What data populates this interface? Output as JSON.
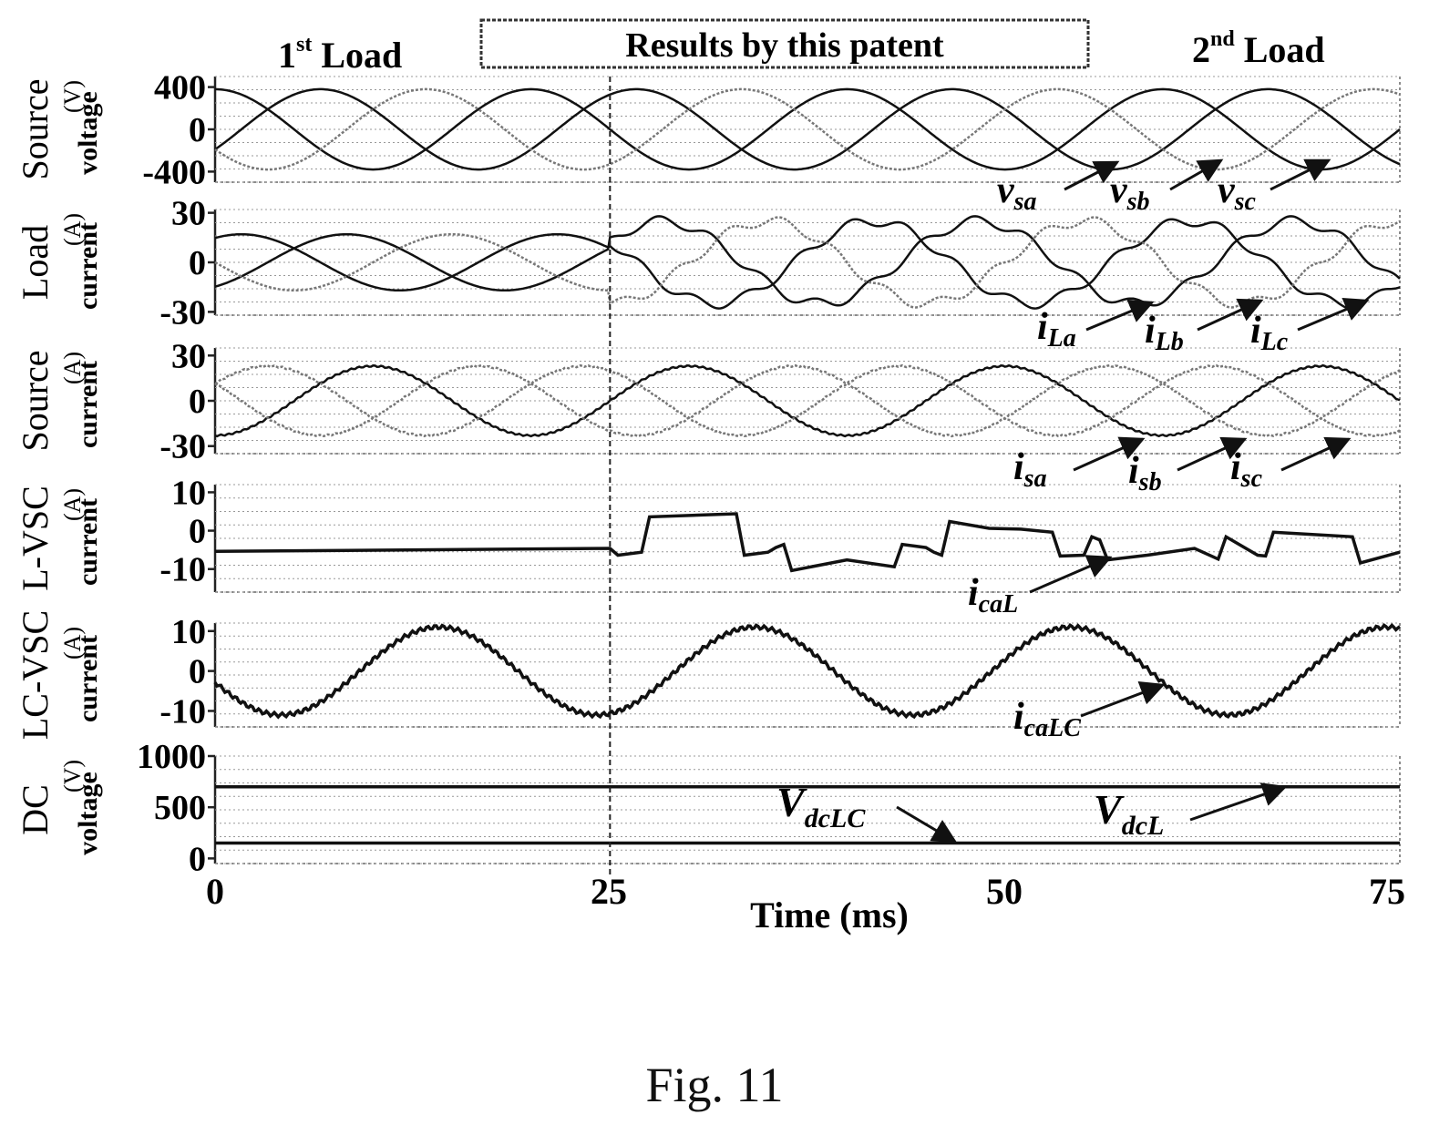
{
  "header": {
    "left_label_main": "1",
    "left_label_sup": "st",
    "left_label_rest": " Load",
    "center_label": "Results by this patent",
    "right_label_main": "2",
    "right_label_sup": "nd",
    "right_label_rest": " Load"
  },
  "caption": "Fig. 11",
  "chart_data": {
    "type": "line",
    "xlabel": "Time (ms)",
    "xlim": [
      0,
      75
    ],
    "x_ticks": [
      "0",
      "25",
      "50",
      "75"
    ],
    "event_marker_x": 25,
    "panels": [
      {
        "id": "source-voltage",
        "ylabel_line1": "Source",
        "ylabel_line2": "voltage",
        "unit": "(V)",
        "ylim": [
          -500,
          500
        ],
        "y_ticks": [
          {
            "v": 400,
            "t": "400"
          },
          {
            "v": 0,
            "t": "0"
          },
          {
            "v": -400,
            "t": "-400"
          }
        ],
        "series": [
          {
            "label": "v",
            "sub": "sa",
            "style": "dark",
            "model": {
              "type": "sine",
              "before": {
                "amp": 380,
                "phase_deg": 90
              },
              "after": {
                "amp": 380,
                "phase_deg": 90
              }
            }
          },
          {
            "label": "v",
            "sub": "sb",
            "style": "dark",
            "model": {
              "type": "sine",
              "before": {
                "amp": 380,
                "phase_deg": -30
              },
              "after": {
                "amp": 380,
                "phase_deg": -30
              }
            }
          },
          {
            "label": "v",
            "sub": "sc",
            "style": "light",
            "model": {
              "type": "sine",
              "before": {
                "amp": 380,
                "phase_deg": 210
              },
              "after": {
                "amp": 380,
                "phase_deg": 210
              }
            }
          }
        ]
      },
      {
        "id": "load-current",
        "ylabel_line1": "Load",
        "ylabel_line2": "current",
        "unit": "(A)",
        "ylim": [
          -32,
          32
        ],
        "y_ticks": [
          {
            "v": 30,
            "t": "30"
          },
          {
            "v": 0,
            "t": "0"
          },
          {
            "v": -30,
            "t": "-30"
          }
        ],
        "series": [
          {
            "label": "i",
            "sub": "La",
            "style": "dark",
            "model": {
              "type": "sine",
              "before": {
                "amp": 17,
                "phase_deg": 60
              },
              "after": {
                "amp": 25,
                "phase_deg": 60,
                "ripple": 3
              }
            }
          },
          {
            "label": "i",
            "sub": "Lb",
            "style": "dark",
            "model": {
              "type": "sine",
              "before": {
                "amp": 17,
                "phase_deg": -60
              },
              "after": {
                "amp": 25,
                "phase_deg": -60,
                "ripple": 3
              }
            }
          },
          {
            "label": "i",
            "sub": "Lc",
            "style": "light",
            "model": {
              "type": "sine",
              "before": {
                "amp": 17,
                "phase_deg": 180
              },
              "after": {
                "amp": 25,
                "phase_deg": 180,
                "ripple": 3
              }
            }
          }
        ]
      },
      {
        "id": "source-current",
        "ylabel_line1": "Source",
        "ylabel_line2": "current",
        "unit": "(A)",
        "ylim": [
          -35,
          35
        ],
        "y_ticks": [
          {
            "v": 30,
            "t": "30"
          },
          {
            "v": 0,
            "t": "0"
          },
          {
            "v": -30,
            "t": "-30"
          }
        ],
        "series": [
          {
            "label": "i",
            "sub": "sa",
            "style": "dark",
            "model": {
              "type": "sine",
              "before": {
                "amp": 23,
                "phase_deg": -90
              },
              "after": {
                "amp": 23,
                "phase_deg": -90
              }
            }
          },
          {
            "label": "i",
            "sub": "sb",
            "style": "light",
            "model": {
              "type": "sine",
              "before": {
                "amp": 23,
                "phase_deg": 30
              },
              "after": {
                "amp": 23,
                "phase_deg": 30
              }
            }
          },
          {
            "label": "i",
            "sub": "sc",
            "style": "light",
            "model": {
              "type": "sine",
              "before": {
                "amp": 23,
                "phase_deg": 150
              },
              "after": {
                "amp": 23,
                "phase_deg": 150
              }
            }
          }
        ]
      },
      {
        "id": "lvsc-current",
        "ylabel_line1": "L-VSC",
        "ylabel_line2": "current",
        "unit": "(A)",
        "ylim": [
          -16,
          12
        ],
        "y_ticks": [
          {
            "v": 10,
            "t": "10"
          },
          {
            "v": 0,
            "t": "0"
          },
          {
            "v": -10,
            "t": "-10"
          }
        ],
        "series": [
          {
            "label": "i",
            "sub": "caL",
            "style": "dark",
            "model": {
              "type": "steps",
              "points": [
                [
                  0,
                  -5
                ],
                [
                  25,
                  -5
                ],
                [
                  25.5,
                  -6
                ],
                [
                  27,
                  -6
                ],
                [
                  27.5,
                  4
                ],
                [
                  33,
                  4
                ],
                [
                  33.5,
                  -6
                ],
                [
                  35,
                  -6
                ],
                [
                  35.5,
                  -4
                ],
                [
                  36,
                  -4
                ],
                [
                  36.5,
                  -10
                ],
                [
                  40,
                  -8
                ],
                [
                  43,
                  -9
                ],
                [
                  43.5,
                  -4
                ],
                [
                  45,
                  -4
                ],
                [
                  45.5,
                  -6
                ],
                [
                  46,
                  -6
                ],
                [
                  46.5,
                  2
                ],
                [
                  49,
                  1
                ],
                [
                  51,
                  0
                ],
                [
                  53,
                  0
                ],
                [
                  53.5,
                  -7
                ],
                [
                  55,
                  -6
                ],
                [
                  55.5,
                  -2
                ],
                [
                  56,
                  -2
                ],
                [
                  56.5,
                  -8
                ],
                [
                  59,
                  -6
                ],
                [
                  62,
                  -5
                ],
                [
                  63.5,
                  -7
                ],
                [
                  64,
                  -2
                ],
                [
                  66,
                  -6
                ],
                [
                  66.5,
                  -7
                ],
                [
                  67,
                  0
                ],
                [
                  72,
                  -2
                ],
                [
                  72.5,
                  -8
                ],
                [
                  75,
                  -6
                ]
              ]
            }
          }
        ]
      },
      {
        "id": "lcvsc-current",
        "ylabel_line1": "LC-VSC",
        "ylabel_line2": "current",
        "unit": "(A)",
        "ylim": [
          -14,
          12
        ],
        "y_ticks": [
          {
            "v": 10,
            "t": "10"
          },
          {
            "v": 0,
            "t": "0"
          },
          {
            "v": -10,
            "t": "-10"
          }
        ],
        "series": [
          {
            "label": "i",
            "sub": "caLC",
            "style": "dark",
            "model": {
              "type": "sine",
              "before": {
                "amp": 11,
                "phase_deg": 195
              },
              "after": {
                "amp": 11,
                "phase_deg": 195
              }
            }
          }
        ]
      },
      {
        "id": "dc-voltage",
        "ylabel_line1": "DC",
        "ylabel_line2": "voltage",
        "unit": "(V)",
        "ylim": [
          -50,
          1000
        ],
        "y_ticks": [
          {
            "v": 1000,
            "t": "1000"
          },
          {
            "v": 500,
            "t": "500"
          },
          {
            "v": 0,
            "t": "0"
          }
        ],
        "series": [
          {
            "label": "V",
            "sub": "dcLC",
            "style": "dark",
            "model": {
              "type": "const",
              "value": 150
            }
          },
          {
            "label": "V",
            "sub": "dcL",
            "style": "dark",
            "model": {
              "type": "const",
              "value": 700
            }
          }
        ]
      }
    ]
  }
}
